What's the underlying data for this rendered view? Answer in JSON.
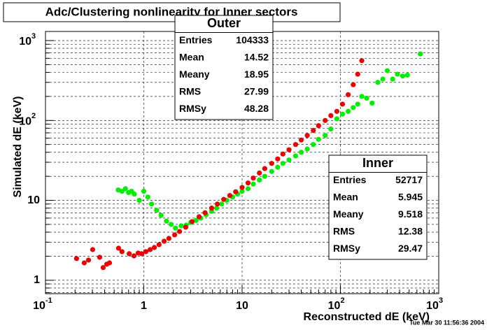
{
  "chart_data": {
    "type": "scatter",
    "title": "Adc/Clustering nonlinearity for Inner sectors",
    "x_label": "Reconstructed dE (keV)",
    "y_label": "Simulated dE (keV)",
    "timestamp": "Tue Mar 30 11:56:36 2004",
    "x_log": true,
    "y_log": true,
    "grid": true,
    "xlim": [
      0.1,
      1000
    ],
    "ylim": [
      0.68,
      1300
    ],
    "xticks": [
      {
        "value": 0.1,
        "label": "10",
        "exponent": "-1"
      },
      1,
      10,
      {
        "value": 100,
        "label": "10",
        "exponent": "2"
      },
      {
        "value": 1000,
        "label": "10",
        "exponent": "3"
      }
    ],
    "yticks": [
      1,
      10,
      {
        "value": 100,
        "label": "10",
        "exponent": "2"
      },
      {
        "value": 1000,
        "label": "10",
        "exponent": "3"
      }
    ],
    "series": [
      {
        "name": "Outer",
        "color": "#00ee00",
        "stats": [
          {
            "label": "Entries",
            "value": 104333
          },
          {
            "label": "Mean",
            "value": 14.52
          },
          {
            "label": "Meany",
            "value": 18.95
          },
          {
            "label": "RMS",
            "value": 27.99
          },
          {
            "label": "RMSy",
            "value": 48.28
          }
        ],
        "x": [
          0.55,
          0.6,
          0.65,
          0.7,
          0.75,
          0.8,
          0.9,
          1.0,
          1.1,
          1.2,
          1.35,
          1.5,
          1.7,
          1.9,
          2.1,
          2.4,
          2.7,
          3.0,
          3.4,
          3.8,
          4.3,
          4.9,
          5.5,
          6.2,
          7,
          8,
          9,
          10,
          11.5,
          13,
          15,
          17,
          20,
          23,
          26,
          30,
          35,
          40,
          46,
          53,
          60,
          70,
          80,
          92,
          105,
          120,
          135,
          150,
          165,
          185,
          210,
          240,
          270,
          300,
          340,
          380,
          430,
          480,
          650
        ],
        "values": [
          13.5,
          13,
          14,
          12.5,
          13,
          12,
          10,
          13,
          11,
          9,
          7.5,
          6.5,
          5.5,
          5,
          4.5,
          4.8,
          4.9,
          5.3,
          5.6,
          6,
          6.6,
          7.3,
          8,
          9,
          10,
          11,
          12,
          13,
          14,
          16,
          18,
          20,
          23,
          26,
          29,
          32,
          36,
          40,
          44,
          50,
          58,
          65,
          78,
          105,
          120,
          130,
          145,
          160,
          200,
          190,
          165,
          300,
          330,
          420,
          330,
          380,
          360,
          370,
          680
        ]
      },
      {
        "name": "Inner",
        "color": "#ee0000",
        "stats": [
          {
            "label": "Entries",
            "value": 52717
          },
          {
            "label": "Mean",
            "value": 5.945
          },
          {
            "label": "Meany",
            "value": 9.518
          },
          {
            "label": "RMS",
            "value": 12.38
          },
          {
            "label": "RMSy",
            "value": 29.47
          }
        ],
        "x": [
          0.207,
          0.248,
          0.274,
          0.302,
          0.356,
          0.386,
          0.42,
          0.448,
          0.554,
          0.6,
          0.71,
          0.795,
          0.877,
          0.95,
          1.05,
          1.16,
          1.28,
          1.43,
          1.61,
          1.8,
          2.06,
          2.31,
          2.67,
          3.1,
          3.65,
          4.2,
          4.9,
          5.6,
          6.5,
          7.5,
          8.6,
          10,
          11.5,
          13,
          15,
          17,
          20,
          23,
          26,
          30,
          35,
          40,
          46,
          53,
          60,
          70,
          80,
          92,
          105,
          120,
          135,
          150,
          165
        ],
        "values": [
          1.87,
          1.65,
          1.79,
          2.42,
          1.94,
          1.44,
          1.59,
          1.65,
          2.52,
          2.28,
          2.15,
          2.02,
          2.19,
          2.15,
          2.28,
          2.42,
          2.57,
          2.79,
          3.08,
          3.34,
          3.7,
          4.08,
          4.61,
          5.42,
          6.24,
          7,
          8,
          9,
          10.3,
          11.5,
          12.8,
          14.5,
          16.5,
          19,
          22,
          25,
          29,
          33,
          38,
          43,
          50,
          57,
          65,
          75,
          86,
          100,
          115,
          130,
          160,
          210,
          280,
          380,
          560
        ]
      }
    ]
  }
}
